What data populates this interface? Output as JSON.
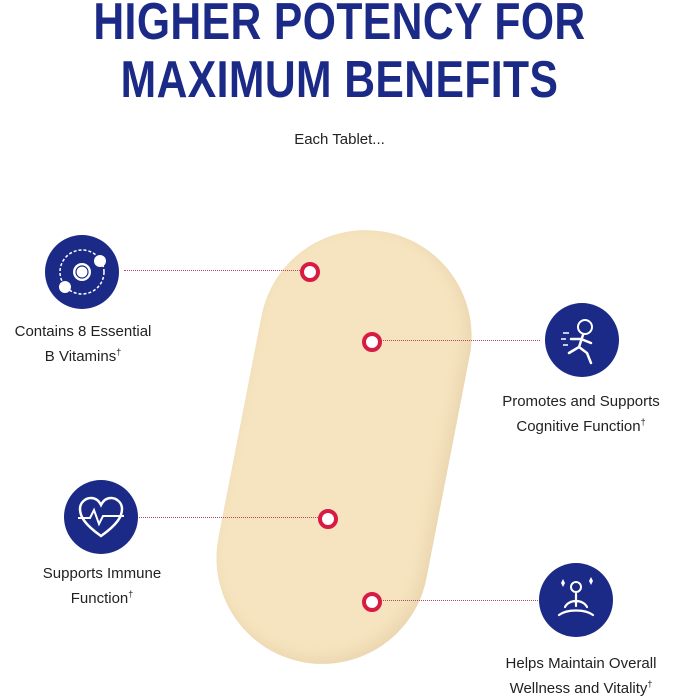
{
  "header": {
    "line1": "HIGHER POTENCY FOR",
    "line2": "MAXIMUM BENEFITS",
    "subtitle": "Each Tablet..."
  },
  "features": [
    {
      "icon": "molecule-orbit-icon",
      "line1": "Contains 8 Essential",
      "line2": "B Vitamins",
      "mark": "†"
    },
    {
      "icon": "running-brain-icon",
      "line1": "Promotes and Supports",
      "line2": "Cognitive Function",
      "mark": "†"
    },
    {
      "icon": "heart-pulse-icon",
      "line1": "Supports Immune",
      "line2": "Function",
      "mark": "†"
    },
    {
      "icon": "meditation-icon",
      "line1": "Helps Maintain Overall",
      "line2": "Wellness and Vitality",
      "mark": "†"
    }
  ],
  "colors": {
    "navy": "#1b2a86",
    "accent": "#d81b43",
    "tablet": "#f6e4c0"
  }
}
